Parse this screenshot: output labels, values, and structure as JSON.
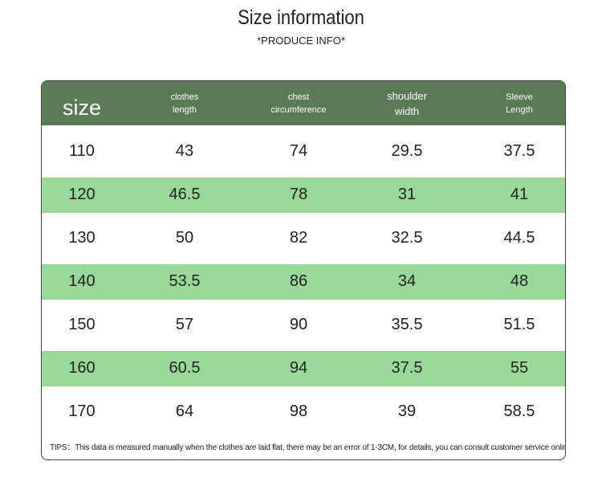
{
  "header": {
    "title": "Size information",
    "subtitle": "*PRODUCE INFO*"
  },
  "table": {
    "columns": [
      [
        "size"
      ],
      [
        "clothes",
        "length"
      ],
      [
        "chest",
        "circumference"
      ],
      [
        "shoulder",
        "width"
      ],
      [
        "Sleeve",
        "Length"
      ]
    ],
    "rows": [
      [
        110,
        43,
        74,
        29.5,
        37.5
      ],
      [
        120,
        46.5,
        78,
        31,
        41
      ],
      [
        130,
        50,
        82,
        32.5,
        44.5
      ],
      [
        140,
        53.5,
        86,
        34,
        48
      ],
      [
        150,
        57,
        90,
        35.5,
        51.5
      ],
      [
        160,
        60.5,
        94,
        37.5,
        55
      ],
      [
        170,
        64,
        98,
        39,
        58.5
      ]
    ],
    "tips": "TIPS：This data is measured manually when the clothes are laid flat, there may be an error of 1-3CM, for details, you can consult customer service online"
  }
}
